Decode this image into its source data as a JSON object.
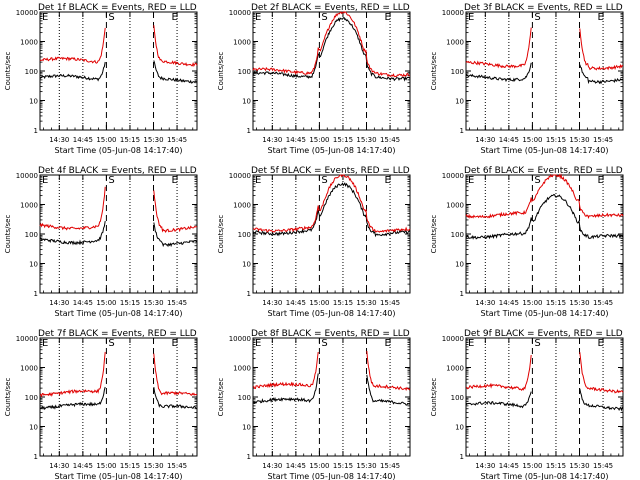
{
  "colors": {
    "events": "#000000",
    "lld": "#e00000",
    "axis": "#000000",
    "background": "#ffffff"
  },
  "common": {
    "ylabel": "Counts/sec",
    "xlabel": "Start Time (05-Jun-08 14:17:40)",
    "x_tick_labels": [
      "14:30",
      "14:45",
      "15:00",
      "15:15",
      "15:30",
      "15:45"
    ],
    "y_tick_labels": [
      "1",
      "10",
      "100",
      "1000",
      "10000"
    ],
    "markers": {
      "start": "E",
      "middle": "S",
      "end": "E"
    }
  },
  "chart_data": [
    {
      "type": "line",
      "title": "Det 1f BLACK = Events, RED = LLD",
      "xlabel": "Start Time (05-Jun-08 14:17:40)",
      "ylabel": "Counts/sec",
      "x_range_minutes": [
        0,
        100
      ],
      "ylim": [
        1,
        10000
      ],
      "yscale": "log",
      "saa_window": [
        42,
        72
      ],
      "dotted_lines_minutes": [
        12.3,
        27.3,
        57.3,
        87.3
      ],
      "dashed_lines_minutes": [
        42.3,
        72.3
      ],
      "series": [
        {
          "name": "Events",
          "color": "black",
          "base_counts_per_sec": 60,
          "saturates_in_window": false,
          "peak_counts_per_sec": 400,
          "gap_in_window": true
        },
        {
          "name": "LLD",
          "color": "red",
          "base_counts_per_sec": 230,
          "saturates_in_window": true,
          "peak_counts_per_sec": 10000,
          "gap_in_window": true
        }
      ]
    },
    {
      "type": "line",
      "title": "Det 2f BLACK = Events, RED = LLD",
      "xlabel": "Start Time (05-Jun-08 14:17:40)",
      "ylabel": "Counts/sec",
      "x_range_minutes": [
        0,
        100
      ],
      "ylim": [
        1,
        10000
      ],
      "yscale": "log",
      "saa_window": [
        42,
        72
      ],
      "dotted_lines_minutes": [
        12.3,
        27.3,
        57.3,
        87.3
      ],
      "dashed_lines_minutes": [
        42.3,
        72.3
      ],
      "series": [
        {
          "name": "Events",
          "color": "black",
          "base_counts_per_sec": 75,
          "saturates_in_window": false,
          "peak_counts_per_sec": 6000,
          "gap_in_window": false
        },
        {
          "name": "LLD",
          "color": "red",
          "base_counts_per_sec": 100,
          "saturates_in_window": true,
          "peak_counts_per_sec": 10000,
          "gap_in_window": false
        }
      ]
    },
    {
      "type": "line",
      "title": "Det 3f BLACK = Events, RED = LLD",
      "xlabel": "Start Time (05-Jun-08 14:17:40)",
      "ylabel": "Counts/sec",
      "x_range_minutes": [
        0,
        100
      ],
      "ylim": [
        1,
        10000
      ],
      "yscale": "log",
      "saa_window": [
        42,
        72
      ],
      "dotted_lines_minutes": [
        12.3,
        27.3,
        57.3,
        87.3
      ],
      "dashed_lines_minutes": [
        42.3,
        72.3
      ],
      "series": [
        {
          "name": "Events",
          "color": "black",
          "base_counts_per_sec": 60,
          "saturates_in_window": false,
          "peak_counts_per_sec": 300,
          "gap_in_window": true
        },
        {
          "name": "LLD",
          "color": "red",
          "base_counts_per_sec": 170,
          "saturates_in_window": true,
          "peak_counts_per_sec": 10000,
          "gap_in_window": true
        }
      ]
    },
    {
      "type": "line",
      "title": "Det 4f BLACK = Events, RED = LLD",
      "xlabel": "Start Time (05-Jun-08 14:17:40)",
      "ylabel": "Counts/sec",
      "x_range_minutes": [
        0,
        100
      ],
      "ylim": [
        1,
        10000
      ],
      "yscale": "log",
      "saa_window": [
        42,
        72
      ],
      "dotted_lines_minutes": [
        12.3,
        27.3,
        57.3,
        87.3
      ],
      "dashed_lines_minutes": [
        42.3,
        72.3
      ],
      "series": [
        {
          "name": "Events",
          "color": "black",
          "base_counts_per_sec": 60,
          "saturates_in_window": false,
          "peak_counts_per_sec": 400,
          "gap_in_window": true
        },
        {
          "name": "LLD",
          "color": "red",
          "base_counts_per_sec": 180,
          "saturates_in_window": true,
          "peak_counts_per_sec": 10000,
          "gap_in_window": true
        }
      ]
    },
    {
      "type": "line",
      "title": "Det 5f BLACK = Events, RED = LLD",
      "xlabel": "Start Time (05-Jun-08 14:17:40)",
      "ylabel": "Counts/sec",
      "x_range_minutes": [
        0,
        100
      ],
      "ylim": [
        1,
        10000
      ],
      "yscale": "log",
      "saa_window": [
        42,
        72
      ],
      "dotted_lines_minutes": [
        12.3,
        27.3,
        57.3,
        87.3
      ],
      "dashed_lines_minutes": [
        42.3,
        72.3
      ],
      "series": [
        {
          "name": "Events",
          "color": "black",
          "base_counts_per_sec": 120,
          "saturates_in_window": false,
          "peak_counts_per_sec": 5000,
          "gap_in_window": false
        },
        {
          "name": "LLD",
          "color": "red",
          "base_counts_per_sec": 150,
          "saturates_in_window": true,
          "peak_counts_per_sec": 10000,
          "gap_in_window": false
        }
      ]
    },
    {
      "type": "line",
      "title": "Det 6f BLACK = Events, RED = LLD",
      "xlabel": "Start Time (05-Jun-08 14:17:40)",
      "ylabel": "Counts/sec",
      "x_range_minutes": [
        0,
        100
      ],
      "ylim": [
        1,
        10000
      ],
      "yscale": "log",
      "saa_window": [
        42,
        72
      ],
      "dotted_lines_minutes": [
        12.3,
        27.3,
        57.3,
        87.3
      ],
      "dashed_lines_minutes": [
        42.3,
        72.3
      ],
      "series": [
        {
          "name": "Events",
          "color": "black",
          "base_counts_per_sec": 90,
          "saturates_in_window": false,
          "peak_counts_per_sec": 2000,
          "gap_in_window": false
        },
        {
          "name": "LLD",
          "color": "red",
          "base_counts_per_sec": 450,
          "saturates_in_window": true,
          "peak_counts_per_sec": 10000,
          "gap_in_window": false
        }
      ]
    },
    {
      "type": "line",
      "title": "Det 7f BLACK = Events, RED = LLD",
      "xlabel": "Start Time (05-Jun-08 14:17:40)",
      "ylabel": "Counts/sec",
      "x_range_minutes": [
        0,
        100
      ],
      "ylim": [
        1,
        10000
      ],
      "yscale": "log",
      "saa_window": [
        42,
        72
      ],
      "dotted_lines_minutes": [
        12.3,
        27.3,
        57.3,
        87.3
      ],
      "dashed_lines_minutes": [
        42.3,
        72.3
      ],
      "series": [
        {
          "name": "Events",
          "color": "black",
          "base_counts_per_sec": 50,
          "saturates_in_window": false,
          "peak_counts_per_sec": 400,
          "gap_in_window": true
        },
        {
          "name": "LLD",
          "color": "red",
          "base_counts_per_sec": 140,
          "saturates_in_window": true,
          "peak_counts_per_sec": 10000,
          "gap_in_window": true
        }
      ]
    },
    {
      "type": "line",
      "title": "Det 8f BLACK = Events, RED = LLD",
      "xlabel": "Start Time (05-Jun-08 14:17:40)",
      "ylabel": "Counts/sec",
      "x_range_minutes": [
        0,
        100
      ],
      "ylim": [
        1,
        10000
      ],
      "yscale": "log",
      "saa_window": [
        42,
        72
      ],
      "dotted_lines_minutes": [
        12.3,
        27.3,
        57.3,
        87.3
      ],
      "dashed_lines_minutes": [
        42.3,
        72.3
      ],
      "series": [
        {
          "name": "Events",
          "color": "black",
          "base_counts_per_sec": 75,
          "saturates_in_window": false,
          "peak_counts_per_sec": 1500,
          "gap_in_window": true
        },
        {
          "name": "LLD",
          "color": "red",
          "base_counts_per_sec": 240,
          "saturates_in_window": true,
          "peak_counts_per_sec": 10000,
          "gap_in_window": true
        }
      ]
    },
    {
      "type": "line",
      "title": "Det 9f BLACK = Events, RED = LLD",
      "xlabel": "Start Time (05-Jun-08 14:17:40)",
      "ylabel": "Counts/sec",
      "x_range_minutes": [
        0,
        100
      ],
      "ylim": [
        1,
        10000
      ],
      "yscale": "log",
      "saa_window": [
        42,
        72
      ],
      "dotted_lines_minutes": [
        12.3,
        27.3,
        57.3,
        87.3
      ],
      "dashed_lines_minutes": [
        42.3,
        72.3
      ],
      "series": [
        {
          "name": "Events",
          "color": "black",
          "base_counts_per_sec": 55,
          "saturates_in_window": false,
          "peak_counts_per_sec": 300,
          "gap_in_window": true
        },
        {
          "name": "LLD",
          "color": "red",
          "base_counts_per_sec": 210,
          "saturates_in_window": true,
          "peak_counts_per_sec": 10000,
          "gap_in_window": true
        }
      ]
    }
  ]
}
